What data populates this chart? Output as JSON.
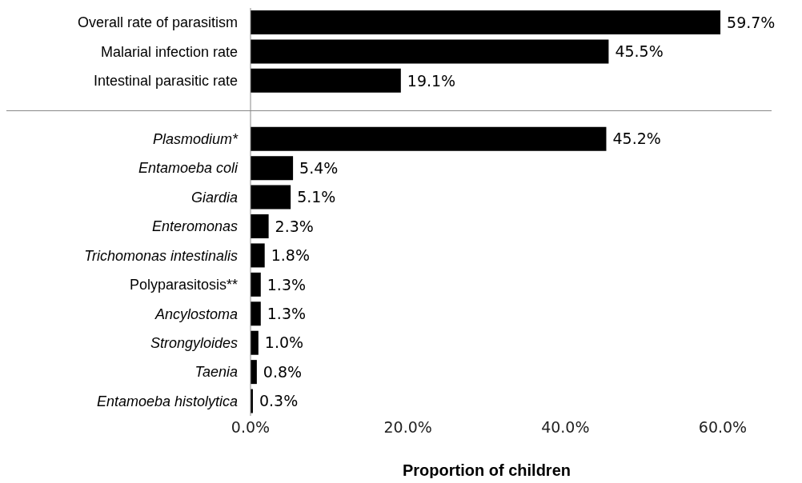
{
  "chart_data": {
    "type": "bar",
    "orientation": "horizontal",
    "xlabel": "Proportion of children",
    "categories": [
      "Overall rate of parasitism",
      "Malarial infection rate",
      "Intestinal parasitic rate",
      null,
      "Plasmodium*",
      "Entamoeba coli",
      "Giardia",
      "Enteromonas",
      "Trichomonas intestinalis",
      "Polyparasitosis**",
      "Ancylostoma",
      "Strongyloides",
      "Taenia",
      "Entamoeba histolytica"
    ],
    "values": [
      59.7,
      45.5,
      19.1,
      null,
      45.2,
      5.4,
      5.1,
      2.3,
      1.8,
      1.3,
      1.3,
      1.0,
      0.8,
      0.3
    ],
    "value_labels": [
      "59.7%",
      "45.5%",
      "19.1%",
      null,
      "45.2%",
      "5.4%",
      "5.1%",
      "2.3%",
      "1.8%",
      "1.3%",
      "1.3%",
      "1.0%",
      "0.8%",
      "0.3%"
    ],
    "color": "#000000",
    "xlim": [
      0,
      60
    ],
    "xticks": [
      {
        "value": 0,
        "label": "0.0%"
      },
      {
        "value": 20,
        "label": "20.0%"
      },
      {
        "value": 40,
        "label": "40.0%"
      },
      {
        "value": 60,
        "label": "60.0%"
      }
    ],
    "grid": false,
    "legend": false
  }
}
